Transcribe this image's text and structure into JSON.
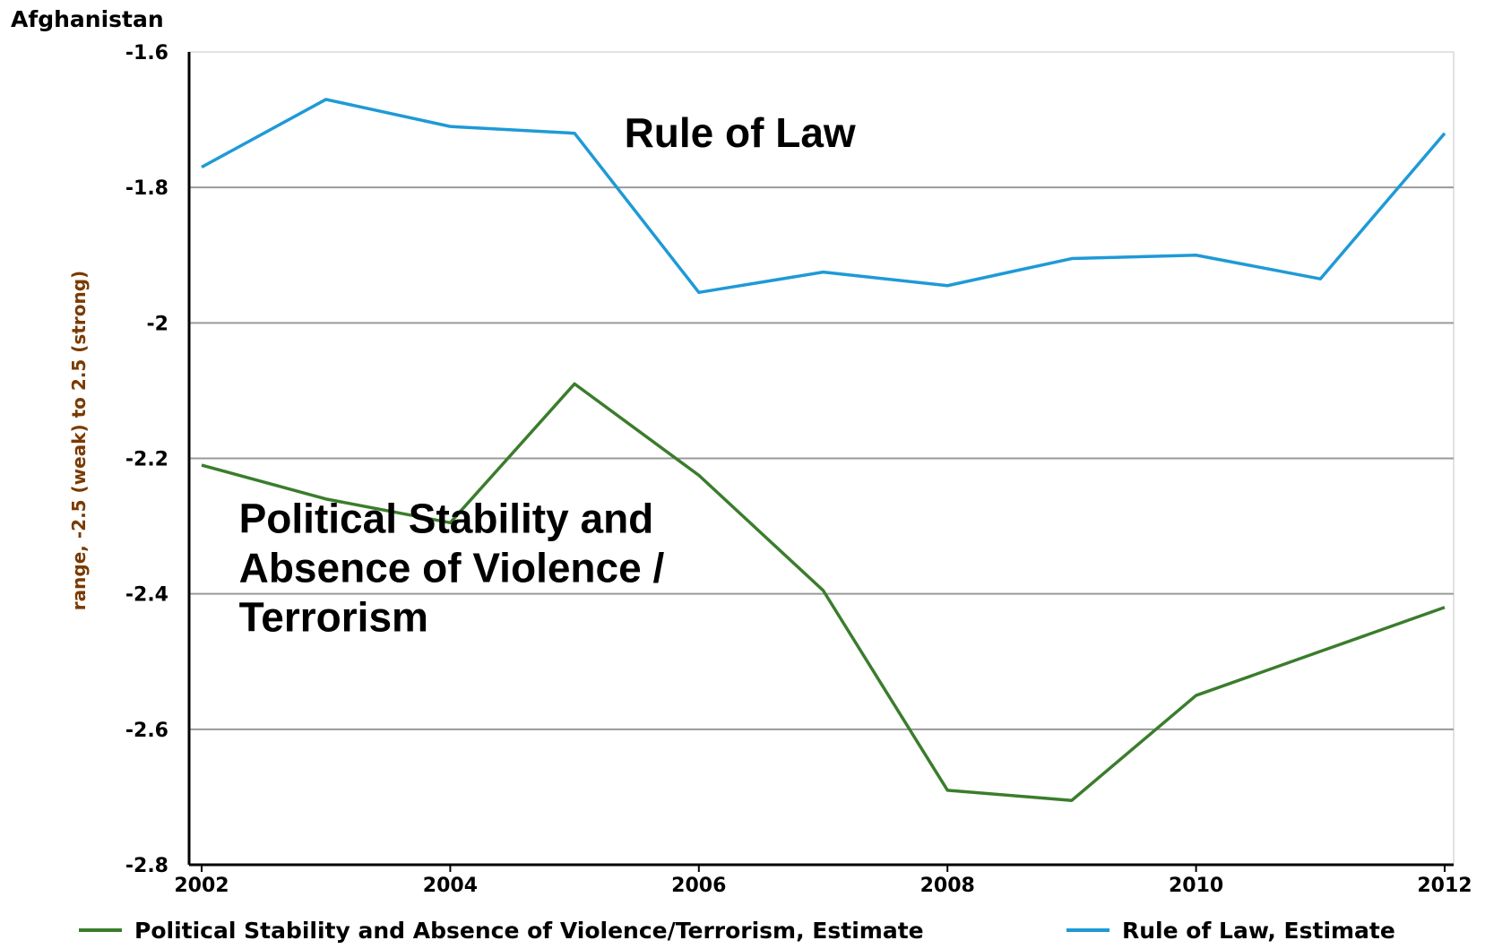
{
  "chart_data": {
    "type": "line",
    "title": "Afghanistan",
    "ylabel": "range, -2.5 (weak) to 2.5 (strong)",
    "xlabel": "",
    "x": [
      2002,
      2003,
      2004,
      2005,
      2006,
      2007,
      2008,
      2009,
      2010,
      2011,
      2012
    ],
    "xticks": [
      "2002",
      "2004",
      "2006",
      "2008",
      "2010",
      "2012"
    ],
    "yticks": [
      "-1.6",
      "-1.8",
      "-2",
      "-2.2",
      "-2.4",
      "-2.6",
      "-2.8"
    ],
    "xlim": [
      2002,
      2012
    ],
    "ylim": [
      -2.8,
      -1.6
    ],
    "grid": true,
    "legend_position": "bottom",
    "series": [
      {
        "name": "Political Stability and Absence of Violence/Terrorism, Estimate",
        "color": "#3a7d2c",
        "values": [
          -2.21,
          -2.26,
          -2.295,
          -2.09,
          -2.225,
          -2.395,
          -2.69,
          -2.705,
          -2.55,
          -2.485,
          -2.42
        ]
      },
      {
        "name": "Rule of Law, Estimate",
        "color": "#1e9ad6",
        "values": [
          -1.77,
          -1.67,
          -1.71,
          -1.72,
          -1.955,
          -1.925,
          -1.945,
          -1.905,
          -1.9,
          -1.935,
          -1.72
        ]
      }
    ],
    "annotations": [
      {
        "text_lines": [
          "Rule of Law"
        ],
        "x": 2005.4,
        "y": -1.74
      },
      {
        "text_lines": [
          "Political Stability and",
          "Absence of Violence /",
          "Terrorism"
        ],
        "x": 2002.3,
        "y": -2.31
      }
    ]
  }
}
